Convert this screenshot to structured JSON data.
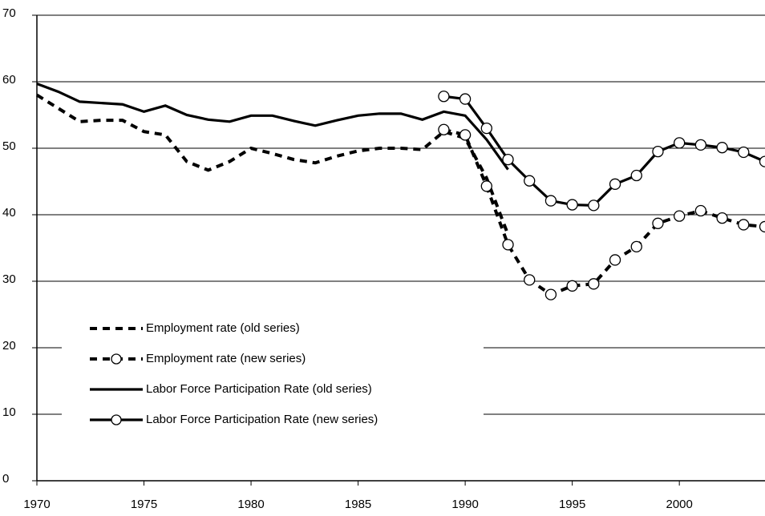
{
  "chart_data": {
    "type": "line",
    "x": [
      1970,
      1971,
      1972,
      1973,
      1974,
      1975,
      1976,
      1977,
      1978,
      1979,
      1980,
      1981,
      1982,
      1983,
      1984,
      1985,
      1986,
      1987,
      1988,
      1989,
      1990,
      1991,
      1992,
      1993,
      1994,
      1995,
      1996,
      1997,
      1998,
      1999,
      2000,
      2001,
      2002,
      2003,
      2004
    ],
    "series": [
      {
        "name": "Employment rate (old series)",
        "color": "#000000",
        "style": "dashed",
        "values": [
          58,
          56,
          54,
          54.2,
          54.2,
          52.5,
          52,
          48,
          46.7,
          48,
          50,
          49.2,
          48.3,
          47.8,
          48.8,
          49.6,
          50,
          50,
          49.8,
          52.5,
          51.5,
          45.5,
          37,
          null,
          null,
          null,
          null,
          null,
          null,
          null,
          null,
          null,
          null,
          null,
          null
        ]
      },
      {
        "name": "Employment rate (new series)",
        "color": "#000000",
        "style": "dashed",
        "marker": "circle",
        "values": [
          null,
          null,
          null,
          null,
          null,
          null,
          null,
          null,
          null,
          null,
          null,
          null,
          null,
          null,
          null,
          null,
          null,
          null,
          null,
          52.8,
          52,
          44.3,
          35.5,
          30.2,
          28,
          29.3,
          29.6,
          33.2,
          35.2,
          38.7,
          39.8,
          40.6,
          39.5,
          38.5,
          38.2
        ]
      },
      {
        "name": "Labor Force Participation Rate (old series)",
        "color": "#000000",
        "style": "solid",
        "values": [
          59.7,
          58.5,
          57,
          56.8,
          56.6,
          55.5,
          56.4,
          55,
          54.3,
          54,
          54.9,
          54.9,
          54.1,
          53.4,
          54.2,
          54.9,
          55.2,
          55.2,
          54.3,
          55.5,
          54.9,
          51.3,
          46.8,
          null,
          null,
          null,
          null,
          null,
          null,
          null,
          null,
          null,
          null,
          null,
          null
        ]
      },
      {
        "name": "Labor Force Participation Rate (new series)",
        "color": "#000000",
        "style": "solid",
        "marker": "circle",
        "values": [
          null,
          null,
          null,
          null,
          null,
          null,
          null,
          null,
          null,
          null,
          null,
          null,
          null,
          null,
          null,
          null,
          null,
          null,
          null,
          57.8,
          57.4,
          53,
          48.3,
          45.1,
          42.1,
          41.5,
          41.4,
          44.6,
          45.9,
          49.5,
          50.8,
          50.5,
          50.1,
          49.4,
          48
        ]
      }
    ],
    "xlim": [
      1970,
      2004
    ],
    "ylim": [
      0,
      70
    ],
    "xticks": [
      1970,
      1975,
      1980,
      1985,
      1990,
      1995,
      2000
    ],
    "yticks": [
      0,
      10,
      20,
      30,
      40,
      50,
      60,
      70
    ],
    "grid": true
  }
}
